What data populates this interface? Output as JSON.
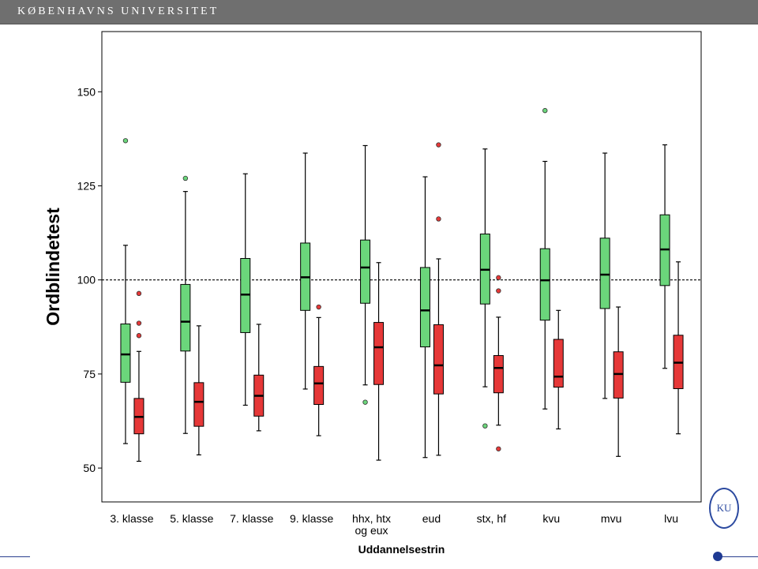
{
  "header": {
    "title": "KØBENHAVNS UNIVERSITET"
  },
  "colors": {
    "group_a": "#6bd67b",
    "group_b": "#e63838",
    "axis": "#000000",
    "reference_line": "#000000"
  },
  "logo": {
    "text": "KU"
  },
  "chart_data": {
    "type": "box",
    "title": "",
    "xlabel": "Uddannelsestrin",
    "ylabel": "Ordblindetest",
    "ylim": [
      41,
      166
    ],
    "yticks": [
      50,
      75,
      100,
      125,
      150
    ],
    "categories": [
      "3. klasse",
      "5. klasse",
      "7. klasse",
      "9. klasse",
      "hhx, htx|og eux",
      "eud",
      "stx, hf",
      "kvu",
      "mvu",
      "lvu"
    ],
    "reference_line": 100,
    "series": [
      {
        "color": "#6bd67b",
        "boxes": [
          {
            "min": 56.5,
            "q1": 72.8,
            "median": 80.2,
            "q3": 88.3,
            "max": 109.2,
            "outliers": [
              137
            ]
          },
          {
            "min": 59.2,
            "q1": 81.1,
            "median": 88.9,
            "q3": 98.8,
            "max": 123.5,
            "outliers": [
              127
            ]
          },
          {
            "min": 66.7,
            "q1": 86.0,
            "median": 96.1,
            "q3": 105.7,
            "max": 128.2,
            "outliers": []
          },
          {
            "min": 71.0,
            "q1": 91.9,
            "median": 100.7,
            "q3": 109.8,
            "max": 133.7,
            "outliers": []
          },
          {
            "min": 72.1,
            "q1": 93.8,
            "median": 103.3,
            "q3": 110.6,
            "max": 135.7,
            "outliers": [
              67.5
            ]
          },
          {
            "min": 52.8,
            "q1": 82.2,
            "median": 91.9,
            "q3": 103.3,
            "max": 127.4,
            "outliers": []
          },
          {
            "min": 71.6,
            "q1": 93.6,
            "median": 102.7,
            "q3": 112.2,
            "max": 134.8,
            "outliers": [
              61.2
            ]
          },
          {
            "min": 65.7,
            "q1": 89.3,
            "median": 99.9,
            "q3": 108.3,
            "max": 131.5,
            "outliers": [
              145
            ]
          },
          {
            "min": 68.5,
            "q1": 92.4,
            "median": 101.4,
            "q3": 111.1,
            "max": 133.7,
            "outliers": []
          },
          {
            "min": 76.5,
            "q1": 98.5,
            "median": 108.1,
            "q3": 117.3,
            "max": 135.9,
            "outliers": []
          }
        ]
      },
      {
        "color": "#e63838",
        "boxes": [
          {
            "min": 51.8,
            "q1": 59.1,
            "median": 63.6,
            "q3": 68.5,
            "max": 81.0,
            "outliers": [
              85.2,
              88.5,
              96.4
            ]
          },
          {
            "min": 53.5,
            "q1": 61.1,
            "median": 67.6,
            "q3": 72.7,
            "max": 87.8,
            "outliers": []
          },
          {
            "min": 59.9,
            "q1": 63.8,
            "median": 69.2,
            "q3": 74.7,
            "max": 88.2,
            "outliers": []
          },
          {
            "min": 58.6,
            "q1": 66.9,
            "median": 72.5,
            "q3": 77.0,
            "max": 90.0,
            "outliers": [
              92.8
            ]
          },
          {
            "min": 52.1,
            "q1": 72.2,
            "median": 82.1,
            "q3": 88.7,
            "max": 104.6,
            "outliers": []
          },
          {
            "min": 53.4,
            "q1": 69.7,
            "median": 77.3,
            "q3": 88.1,
            "max": 105.6,
            "outliers": [
              116.2,
              135.9
            ]
          },
          {
            "min": 61.4,
            "q1": 70.0,
            "median": 76.6,
            "q3": 79.9,
            "max": 90.1,
            "outliers": [
              55.1,
              97.1,
              100.6
            ]
          },
          {
            "min": 60.4,
            "q1": 71.5,
            "median": 74.3,
            "q3": 84.2,
            "max": 91.9,
            "outliers": []
          },
          {
            "min": 53.1,
            "q1": 68.6,
            "median": 75.0,
            "q3": 80.9,
            "max": 92.8,
            "outliers": []
          },
          {
            "min": 59.1,
            "q1": 71.1,
            "median": 78.0,
            "q3": 85.3,
            "max": 104.8,
            "outliers": []
          }
        ]
      }
    ]
  }
}
